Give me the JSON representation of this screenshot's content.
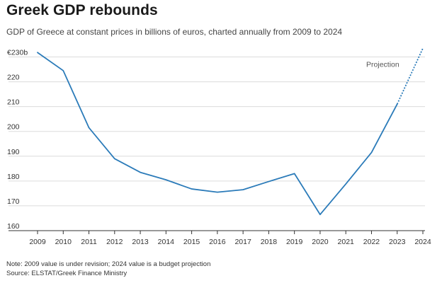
{
  "title": "Greek GDP rebounds",
  "subtitle": "GDP of Greece at constant prices in billions of euros, charted annually from 2009 to 2024",
  "note": "Note: 2009 value is under revision; 2024 value is a budget projection",
  "source": "Source: ELSTAT/Greek Finance Ministry",
  "colors": {
    "line": "#2b7bb9",
    "grid": "#dcdcdc",
    "axis": "#333333",
    "text": "#333333"
  },
  "chart_data": {
    "type": "line",
    "title": "Greek GDP rebounds",
    "xlabel": "",
    "ylabel": "",
    "x": [
      2009,
      2010,
      2011,
      2012,
      2013,
      2014,
      2015,
      2016,
      2017,
      2018,
      2019,
      2020,
      2021,
      2022,
      2023,
      2024
    ],
    "series": [
      {
        "values": [
          231.8,
          224.5,
          201.5,
          189.0,
          183.5,
          180.5,
          176.8,
          175.5,
          176.5,
          179.8,
          183.0,
          166.5,
          178.8,
          191.5,
          211.0,
          233.5
        ]
      }
    ],
    "projection": {
      "label": "Projection",
      "from": 2023,
      "to": 2024
    },
    "ylim": [
      160,
      233
    ],
    "yticks": [
      160,
      170,
      180,
      190,
      200,
      210,
      220,
      230
    ],
    "ytick_labels": [
      "160",
      "170",
      "180",
      "190",
      "200",
      "210",
      "220",
      "€230b"
    ],
    "grid": true
  }
}
